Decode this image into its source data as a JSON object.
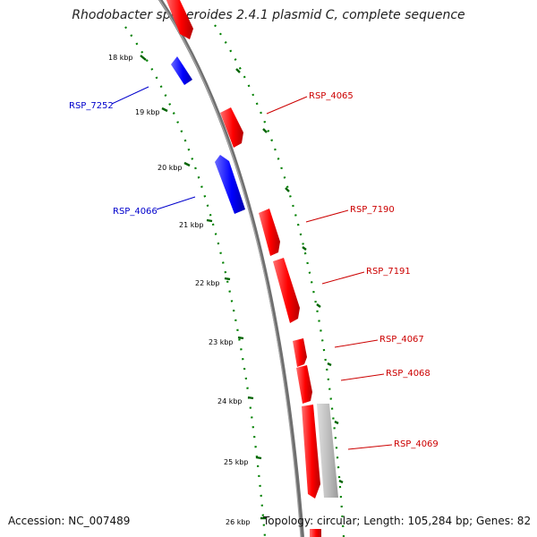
{
  "title": "Rhodobacter sphaeroides 2.4.1 plasmid C, complete sequence",
  "footer": {
    "accession": "Accession: NC_007489",
    "summary": "Topology: circular; Length: 105,284 bp; Genes: 82"
  },
  "colors": {
    "forward": "#ff0000",
    "reverse": "#0000ff",
    "other": "#b8b8b8",
    "backbone": "#808080",
    "ticks": "#007700"
  },
  "ruler": {
    "labels": [
      "18 kbp",
      "19 kbp",
      "20 kbp",
      "21 kbp",
      "22 kbp",
      "23 kbp",
      "24 kbp",
      "25 kbp",
      "26 kbp"
    ]
  },
  "genes": [
    {
      "label": "RSP_7252",
      "strand": "reverse"
    },
    {
      "label": "RSP_4065",
      "strand": "forward"
    },
    {
      "label": "RSP_4066",
      "strand": "reverse"
    },
    {
      "label": "RSP_7190",
      "strand": "forward"
    },
    {
      "label": "RSP_7191",
      "strand": "forward"
    },
    {
      "label": "RSP_4067",
      "strand": "forward"
    },
    {
      "label": "RSP_4068",
      "strand": "forward"
    },
    {
      "label": "RSP_4069",
      "strand": "forward"
    }
  ]
}
